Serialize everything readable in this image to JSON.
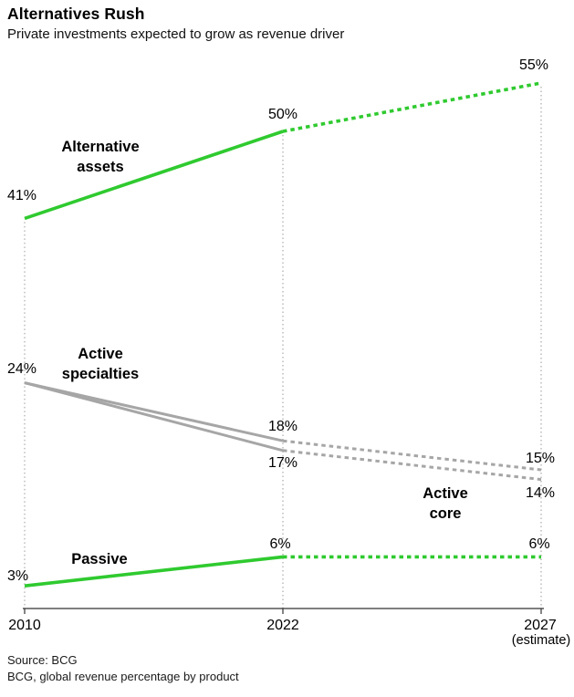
{
  "header": {
    "title": "Alternatives Rush",
    "subtitle": "Private investments expected to grow as revenue driver"
  },
  "chart_data": {
    "type": "line",
    "title": "Alternatives Rush",
    "subtitle": "Private investments expected to grow as revenue driver",
    "x": [
      2010,
      2022,
      2027
    ],
    "categories": [
      "2010",
      "2022",
      "2027"
    ],
    "estimate_note": "(estimate)",
    "unit": "%",
    "ylim": [
      0,
      60
    ],
    "grid": "vertical-dotted-at-each-year",
    "legend_position": "inline-labels-on-lines",
    "solid_until_x": 2022,
    "dashed_segment": "2022-2027 values are estimates, drawn dotted",
    "colors": {
      "green": "#2fca2f",
      "gray": "#a6a6a6",
      "axis": "#333333",
      "gridline": "#ababab"
    },
    "series": [
      {
        "name": "Alternative assets",
        "label_lines": [
          "Alternative",
          "assets"
        ],
        "color": "green",
        "values": [
          41,
          50,
          55
        ],
        "labels": [
          "41%",
          "50%",
          "55%"
        ]
      },
      {
        "name": "Active specialties",
        "label_lines": [
          "Active",
          "specialties"
        ],
        "color": "gray",
        "values": [
          24,
          18,
          15
        ],
        "labels": [
          "24%",
          "18%",
          "15%"
        ]
      },
      {
        "name": "Active core",
        "label_lines": [
          "Active",
          "core"
        ],
        "color": "gray",
        "values": [
          24,
          17,
          14
        ],
        "labels": [
          "",
          "17%",
          "14%"
        ]
      },
      {
        "name": "Passive",
        "label_lines": [
          "Passive"
        ],
        "color": "green",
        "values": [
          3,
          6,
          6
        ],
        "labels": [
          "3%",
          "6%",
          "6%"
        ]
      }
    ]
  },
  "footer": {
    "source_line1": "Source: BCG",
    "source_line2": "BCG, global revenue percentage by product"
  }
}
